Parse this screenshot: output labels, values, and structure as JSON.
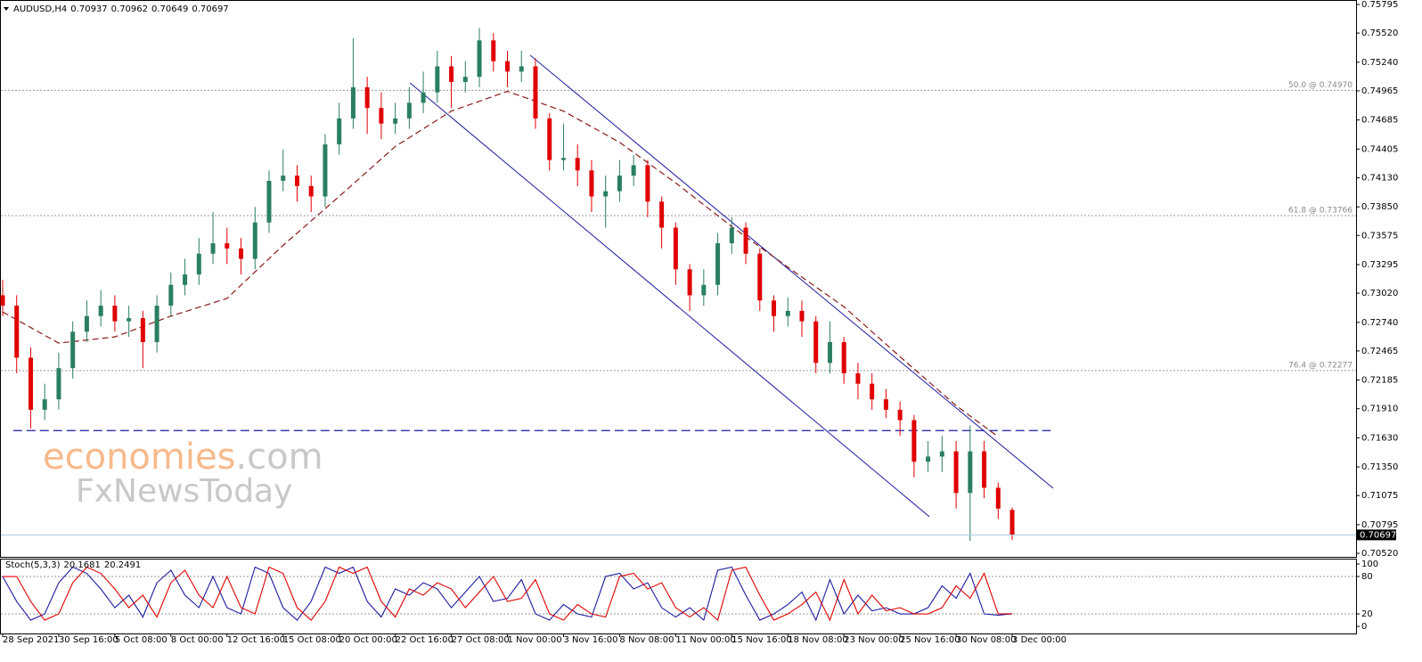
{
  "chart_data": [
    {
      "type": "candlestick",
      "title": "AUDUSD,H4",
      "xlim": [
        -0.76,
        386.1
      ],
      "ylim": [
        0.70486,
        0.75838
      ],
      "x": [
        0,
        4,
        8,
        12,
        16,
        20,
        24,
        28,
        32,
        36,
        40,
        44,
        48,
        52,
        56,
        60,
        64,
        68,
        72,
        76,
        80,
        84,
        88,
        92,
        96,
        100,
        104,
        108,
        112,
        116,
        120,
        124,
        128,
        132,
        136,
        140,
        144,
        148,
        152,
        156,
        160,
        164,
        168,
        172,
        176,
        180,
        184,
        188,
        192,
        196,
        200,
        204,
        208,
        212,
        216,
        220,
        224,
        228,
        232,
        236,
        240,
        244,
        248,
        252,
        256,
        260,
        264,
        268,
        272,
        276,
        280,
        284,
        288
      ],
      "open": [
        0.73,
        0.729,
        0.724,
        0.719,
        0.72,
        0.723,
        0.7265,
        0.728,
        0.729,
        0.7275,
        0.7278,
        0.7255,
        0.729,
        0.731,
        0.732,
        0.734,
        0.735,
        0.7345,
        0.7335,
        0.737,
        0.741,
        0.7415,
        0.7405,
        0.7395,
        0.7445,
        0.747,
        0.75,
        0.748,
        0.7465,
        0.747,
        0.7485,
        0.7495,
        0.752,
        0.7505,
        0.751,
        0.7545,
        0.7525,
        0.7515,
        0.752,
        0.747,
        0.743,
        0.7432,
        0.742,
        0.7395,
        0.74,
        0.7415,
        0.7425,
        0.739,
        0.7365,
        0.7325,
        0.73,
        0.731,
        0.735,
        0.7365,
        0.734,
        0.7295,
        0.728,
        0.7285,
        0.7275,
        0.7235,
        0.7255,
        0.7225,
        0.7215,
        0.72,
        0.719,
        0.718,
        0.714,
        0.7145,
        0.715,
        0.711,
        0.715,
        0.7115,
        0.70937
      ],
      "high": [
        0.7315,
        0.73,
        0.725,
        0.7215,
        0.7245,
        0.7275,
        0.7295,
        0.7305,
        0.73,
        0.729,
        0.7285,
        0.73,
        0.7322,
        0.7335,
        0.7355,
        0.738,
        0.7365,
        0.7355,
        0.7385,
        0.742,
        0.744,
        0.7425,
        0.7415,
        0.7455,
        0.7485,
        0.7547,
        0.751,
        0.7495,
        0.7485,
        0.75,
        0.7515,
        0.7535,
        0.753,
        0.7525,
        0.7557,
        0.7552,
        0.7535,
        0.7535,
        0.7528,
        0.7475,
        0.7465,
        0.7445,
        0.743,
        0.7415,
        0.743,
        0.7435,
        0.743,
        0.7395,
        0.737,
        0.733,
        0.7325,
        0.736,
        0.7375,
        0.737,
        0.7345,
        0.73,
        0.7298,
        0.7295,
        0.728,
        0.7275,
        0.726,
        0.7235,
        0.7225,
        0.721,
        0.7198,
        0.7185,
        0.716,
        0.7165,
        0.716,
        0.7175,
        0.716,
        0.712,
        0.70962
      ],
      "low": [
        0.728,
        0.7225,
        0.7172,
        0.718,
        0.719,
        0.722,
        0.7255,
        0.727,
        0.7265,
        0.726,
        0.723,
        0.7245,
        0.728,
        0.73,
        0.731,
        0.733,
        0.733,
        0.732,
        0.7325,
        0.736,
        0.74,
        0.739,
        0.738,
        0.7385,
        0.7435,
        0.746,
        0.7455,
        0.745,
        0.7455,
        0.746,
        0.7475,
        0.7485,
        0.748,
        0.7495,
        0.75,
        0.7515,
        0.75,
        0.7505,
        0.746,
        0.742,
        0.742,
        0.7405,
        0.738,
        0.7365,
        0.739,
        0.7405,
        0.7375,
        0.7345,
        0.731,
        0.7285,
        0.729,
        0.73,
        0.734,
        0.733,
        0.7285,
        0.7265,
        0.727,
        0.726,
        0.7225,
        0.7225,
        0.7215,
        0.72,
        0.719,
        0.7182,
        0.7165,
        0.7125,
        0.713,
        0.713,
        0.7095,
        0.7064,
        0.7105,
        0.7085,
        0.70649
      ],
      "close": [
        0.729,
        0.724,
        0.719,
        0.72,
        0.723,
        0.7265,
        0.728,
        0.729,
        0.7275,
        0.7278,
        0.7255,
        0.729,
        0.731,
        0.732,
        0.734,
        0.735,
        0.7345,
        0.7335,
        0.737,
        0.741,
        0.7415,
        0.7405,
        0.7395,
        0.7445,
        0.747,
        0.75,
        0.748,
        0.7465,
        0.747,
        0.7485,
        0.7495,
        0.752,
        0.7505,
        0.751,
        0.7545,
        0.7525,
        0.7515,
        0.752,
        0.747,
        0.743,
        0.7432,
        0.742,
        0.7395,
        0.74,
        0.7415,
        0.7425,
        0.739,
        0.7365,
        0.7325,
        0.73,
        0.731,
        0.735,
        0.7365,
        0.734,
        0.7295,
        0.728,
        0.7285,
        0.7275,
        0.7235,
        0.7255,
        0.7225,
        0.7215,
        0.72,
        0.719,
        0.718,
        0.714,
        0.7145,
        0.715,
        0.711,
        0.715,
        0.7115,
        0.7095,
        0.70697
      ],
      "up_color": "#2a7f62",
      "down_color": "#e00000",
      "ma": {
        "color": "#8b1a1a",
        "x": [
          0,
          16,
          32,
          48,
          64,
          80,
          96,
          112,
          128,
          144,
          160,
          176,
          192,
          208,
          224,
          240,
          256,
          272,
          284
        ],
        "values": [
          0.7284,
          0.7254,
          0.726,
          0.728,
          0.7297,
          0.7348,
          0.7395,
          0.7443,
          0.7477,
          0.7496,
          0.7477,
          0.7447,
          0.7408,
          0.7366,
          0.7327,
          0.7289,
          0.7241,
          0.7194,
          0.7164
        ]
      },
      "levels": [
        {
          "value": 0.7497,
          "label": "50.0 @ 0.74970"
        },
        {
          "value": 0.73766,
          "label": "61.8 @ 0.73766"
        },
        {
          "value": 0.72277,
          "label": "76.4 @ 0.72277"
        }
      ],
      "support": {
        "value": 0.717,
        "x": [
          3,
          299
        ],
        "color": "#1a1aa0"
      },
      "channel": {
        "color": "#1a1aa0",
        "lines": [
          {
            "x": [
              150.5,
              299.7
            ],
            "y": [
              0.75307,
              0.71145
            ]
          },
          {
            "x": [
              116.2,
              264.4
            ],
            "y": [
              0.75042,
              0.70871
            ]
          }
        ]
      },
      "yticks": [
        {
          "value": 0.75795,
          "label": "0.75795"
        },
        {
          "value": 0.7552,
          "label": "0.75520"
        },
        {
          "value": 0.7524,
          "label": "0.75240"
        },
        {
          "value": 0.74965,
          "label": "0.74965"
        },
        {
          "value": 0.74685,
          "label": "0.74685"
        },
        {
          "value": 0.74405,
          "label": "0.74405"
        },
        {
          "value": 0.7413,
          "label": "0.74130"
        },
        {
          "value": 0.7385,
          "label": "0.73850"
        },
        {
          "value": 0.73575,
          "label": "0.73575"
        },
        {
          "value": 0.73295,
          "label": "0.73295"
        },
        {
          "value": 0.7302,
          "label": "0.73020"
        },
        {
          "value": 0.7274,
          "label": "0.72740"
        },
        {
          "value": 0.72465,
          "label": "0.72465"
        },
        {
          "value": 0.72185,
          "label": "0.72185"
        },
        {
          "value": 0.7191,
          "label": "0.71910"
        },
        {
          "value": 0.7163,
          "label": "0.71630"
        },
        {
          "value": 0.7135,
          "label": "0.71350"
        },
        {
          "value": 0.71075,
          "label": "0.71075"
        },
        {
          "value": 0.70795,
          "label": "0.70795"
        },
        {
          "value": 0.7052,
          "label": "0.70520"
        }
      ],
      "xticks": [
        {
          "value": 0,
          "label": "28 Sep 2021"
        },
        {
          "value": 16,
          "label": "30 Sep 16:00"
        },
        {
          "value": 32,
          "label": "5 Oct 08:00"
        },
        {
          "value": 48,
          "label": "8 Oct 00:00"
        },
        {
          "value": 64,
          "label": "12 Oct 16:00"
        },
        {
          "value": 80,
          "label": "15 Oct 08:00"
        },
        {
          "value": 96,
          "label": "20 Oct 00:00"
        },
        {
          "value": 112,
          "label": "22 Oct 16:00"
        },
        {
          "value": 128,
          "label": "27 Oct 08:00"
        },
        {
          "value": 144,
          "label": "1 Nov 00:00"
        },
        {
          "value": 160,
          "label": "3 Nov 16:00"
        },
        {
          "value": 176,
          "label": "8 Nov 08:00"
        },
        {
          "value": 192,
          "label": "11 Nov 00:00"
        },
        {
          "value": 208,
          "label": "15 Nov 16:00"
        },
        {
          "value": 224,
          "label": "18 Nov 08:00"
        },
        {
          "value": 240,
          "label": "23 Nov 00:00"
        },
        {
          "value": 256,
          "label": "25 Nov 16:00"
        },
        {
          "value": 272,
          "label": "30 Nov 08:00"
        },
        {
          "value": 288,
          "label": "3 Dec 00:00"
        }
      ],
      "watermark": {
        "brand": "economies",
        "domain": ".com",
        "sub": "FxNewsToday"
      }
    },
    {
      "type": "line",
      "title": "Stoch(5,3,3)",
      "ylim": [
        -11.4,
        108.6
      ],
      "yticks": [
        0,
        20,
        80,
        100
      ],
      "levels": [
        20,
        80
      ],
      "series": [
        {
          "color": "#1a1aa0",
          "values": [
            80,
            40,
            10,
            20,
            70,
            95,
            85,
            60,
            30,
            50,
            15,
            70,
            90,
            50,
            30,
            80,
            30,
            20,
            95,
            85,
            30,
            10,
            40,
            95,
            85,
            95,
            40,
            15,
            60,
            50,
            70,
            60,
            30,
            55,
            80,
            40,
            45,
            75,
            20,
            10,
            35,
            20,
            15,
            80,
            85,
            60,
            70,
            30,
            15,
            30,
            10,
            90,
            95,
            50,
            10,
            20,
            35,
            55,
            10,
            75,
            20,
            50,
            25,
            30,
            20,
            20,
            30,
            65,
            45,
            85,
            20,
            18,
            20.1681
          ]
        },
        {
          "color": "#e00000",
          "values": [
            80,
            80,
            40,
            10,
            20,
            70,
            95,
            85,
            60,
            30,
            50,
            15,
            70,
            90,
            50,
            30,
            80,
            30,
            20,
            95,
            85,
            30,
            10,
            40,
            95,
            85,
            95,
            40,
            15,
            60,
            50,
            70,
            60,
            30,
            55,
            80,
            40,
            45,
            75,
            20,
            10,
            35,
            20,
            15,
            80,
            85,
            60,
            70,
            30,
            15,
            30,
            10,
            90,
            95,
            50,
            10,
            20,
            35,
            55,
            10,
            75,
            20,
            50,
            25,
            30,
            20,
            20,
            30,
            65,
            45,
            85,
            20,
            20.2491
          ]
        }
      ]
    }
  ]
}
